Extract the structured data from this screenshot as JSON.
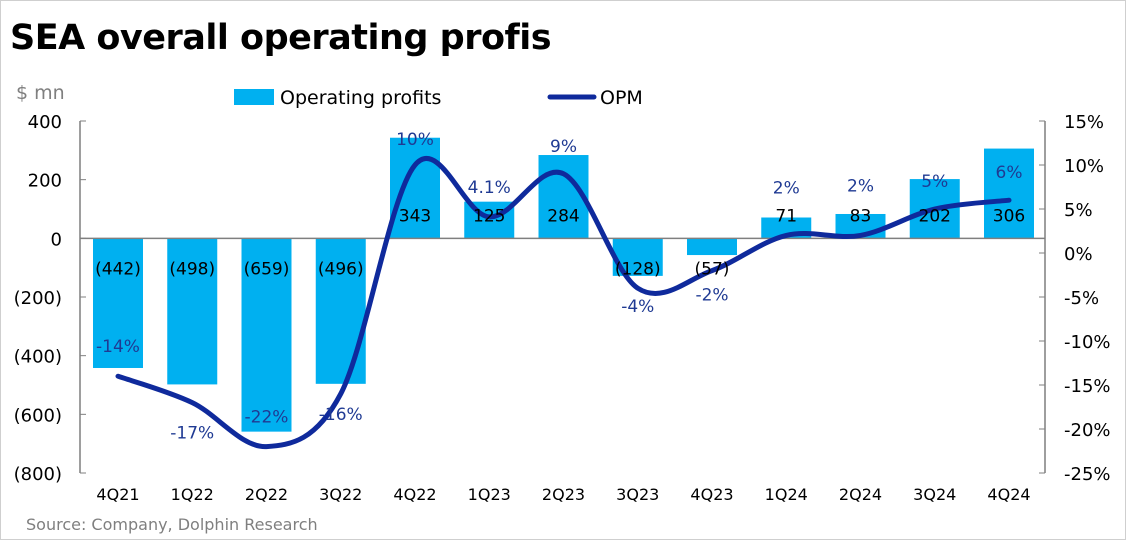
{
  "title": "SEA overall operating profis",
  "unit": "$ mn",
  "source": "Source: Company, Dolphin Research",
  "chart_data": {
    "type": "bar+line",
    "categories": [
      "4Q21",
      "1Q22",
      "2Q22",
      "3Q22",
      "4Q22",
      "1Q23",
      "2Q23",
      "3Q23",
      "4Q23",
      "1Q24",
      "2Q24",
      "3Q24",
      "4Q24"
    ],
    "series": [
      {
        "name": "Operating profits",
        "type": "bar",
        "axis": "left",
        "color": "#00b0f0",
        "values": [
          -442,
          -498,
          -659,
          -496,
          343,
          125,
          284,
          -128,
          -57,
          71,
          83,
          202,
          306
        ],
        "labels": [
          "(442)",
          "(498)",
          "(659)",
          "(496)",
          "343",
          "125",
          "284",
          "(128)",
          "(57)",
          "71",
          "83",
          "202",
          "306"
        ]
      },
      {
        "name": "OPM",
        "type": "line",
        "axis": "right",
        "color": "#0f2a9c",
        "values": [
          -14,
          -17,
          -22,
          -16,
          10,
          4.1,
          9,
          -4,
          -2,
          2,
          2,
          5,
          6
        ],
        "labels": [
          "-14%",
          "-17%",
          "-22%",
          "-16%",
          "10%",
          "4.1%",
          "9%",
          "-4%",
          "-2%",
          "2%",
          "2%",
          "5%",
          "6%"
        ]
      }
    ],
    "y_left": {
      "range": [
        -800,
        400
      ],
      "ticks": [
        400,
        200,
        0,
        -200,
        -400,
        -600,
        -800
      ],
      "tick_labels": [
        "400",
        "200",
        "0",
        "(200)",
        "(400)",
        "(600)",
        "(800)"
      ]
    },
    "y_right": {
      "range": [
        -25,
        15
      ],
      "ticks": [
        15,
        10,
        5,
        0,
        -5,
        -10,
        -15,
        -20,
        -25
      ],
      "tick_labels": [
        "15%",
        "10%",
        "5%",
        "0%",
        "-5%",
        "-10%",
        "-15%",
        "-20%",
        "-25%"
      ]
    },
    "legend_placement": "top",
    "grid": false
  }
}
